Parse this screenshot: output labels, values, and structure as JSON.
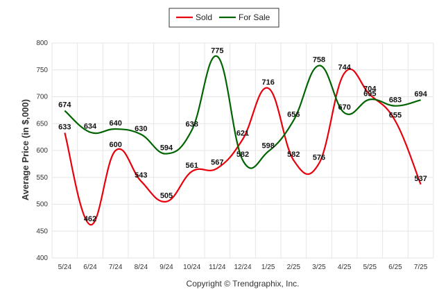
{
  "chart_data": {
    "type": "line",
    "categories": [
      "5/24",
      "6/24",
      "7/24",
      "8/24",
      "9/24",
      "10/24",
      "11/24",
      "12/24",
      "1/25",
      "2/25",
      "3/25",
      "4/25",
      "5/25",
      "6/25",
      "7/25"
    ],
    "series": [
      {
        "name": "Sold",
        "color": "#e8000b",
        "values": [
          633,
          462,
          600,
          543,
          505,
          561,
          567,
          621,
          716,
          582,
          576,
          744,
          704,
          655,
          537
        ]
      },
      {
        "name": "For Sale",
        "color": "#006400",
        "values": [
          674,
          634,
          640,
          630,
          594,
          638,
          775,
          582,
          598,
          656,
          758,
          670,
          695,
          683,
          694
        ]
      }
    ],
    "xlabel": "",
    "ylabel": "Average Price (in $,000)",
    "ylim": [
      400,
      800
    ],
    "yticks": [
      400,
      450,
      500,
      550,
      600,
      650,
      700,
      750,
      800
    ],
    "grid": true,
    "legend_position": "top-center",
    "footer": "Copyright © Trendgraphix, Inc."
  }
}
